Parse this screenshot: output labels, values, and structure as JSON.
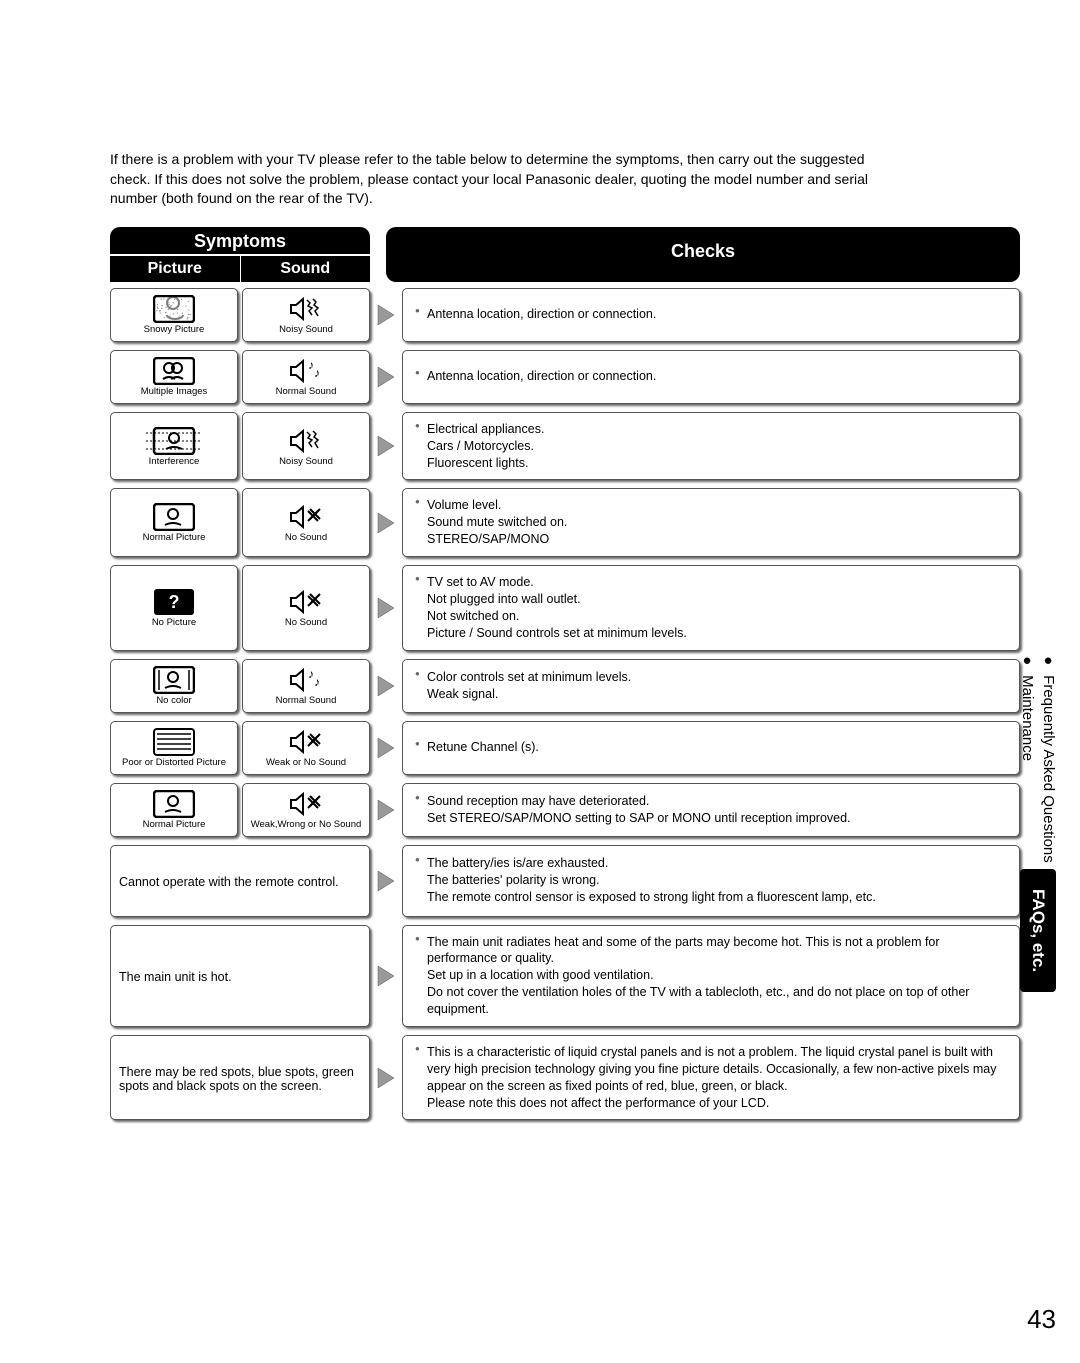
{
  "intro": "If there is a problem with your TV please refer to the table below to determine the symptoms, then carry out the suggested check. If this does not solve the problem, please contact your local Panasonic dealer, quoting the model number and serial number (both found on the rear of the TV).",
  "headers": {
    "symptoms": "Symptoms",
    "picture": "Picture",
    "sound": "Sound",
    "checks": "Checks"
  },
  "rows": [
    {
      "picture_label": "Snowy Picture",
      "picture_icon": "snowy",
      "sound_label": "Noisy Sound",
      "sound_icon": "noisy",
      "checks": [
        {
          "bullet": true,
          "text": "Antenna location, direction or connection."
        }
      ]
    },
    {
      "picture_label": "Multiple Images",
      "picture_icon": "multiple",
      "sound_label": "Normal Sound",
      "sound_icon": "normal",
      "checks": [
        {
          "bullet": true,
          "text": "Antenna location, direction or connection."
        }
      ]
    },
    {
      "picture_label": "Interference",
      "picture_icon": "interference",
      "sound_label": "Noisy Sound",
      "sound_icon": "noisy",
      "checks": [
        {
          "bullet": true,
          "text": "Electrical appliances."
        },
        {
          "bullet": false,
          "text": "Cars / Motorcycles."
        },
        {
          "bullet": false,
          "text": "Fluorescent lights."
        }
      ]
    },
    {
      "picture_label": "Normal Picture",
      "picture_icon": "normal",
      "sound_label": "No Sound",
      "sound_icon": "mute",
      "checks": [
        {
          "bullet": true,
          "text": "Volume level."
        },
        {
          "bullet": false,
          "text": "Sound mute switched on."
        },
        {
          "bullet": false,
          "text": "STEREO/SAP/MONO"
        }
      ]
    },
    {
      "picture_label": "No Picture",
      "picture_icon": "nopicture",
      "sound_label": "No Sound",
      "sound_icon": "mute",
      "checks": [
        {
          "bullet": true,
          "text": "TV set to AV mode."
        },
        {
          "bullet": false,
          "text": "Not plugged into wall outlet."
        },
        {
          "bullet": false,
          "text": "Not switched on."
        },
        {
          "bullet": false,
          "text": "Picture / Sound controls set at minimum levels."
        }
      ]
    },
    {
      "picture_label": "No color",
      "picture_icon": "nocolor",
      "sound_label": "Normal Sound",
      "sound_icon": "normal",
      "checks": [
        {
          "bullet": true,
          "text": "Color controls set at minimum levels."
        },
        {
          "bullet": false,
          "text": "Weak signal."
        }
      ]
    },
    {
      "picture_label": "Poor or Distorted Picture",
      "picture_icon": "distorted",
      "sound_label": "Weak or No Sound",
      "sound_icon": "mute",
      "checks": [
        {
          "bullet": true,
          "text": "Retune Channel (s)."
        }
      ]
    },
    {
      "picture_label": "Normal Picture",
      "picture_icon": "normal",
      "sound_label": "Weak,Wrong or No Sound",
      "sound_icon": "mute",
      "checks": [
        {
          "bullet": true,
          "text": "Sound reception may have deteriorated."
        },
        {
          "bullet": false,
          "text": "Set STEREO/SAP/MONO setting to SAP or MONO until reception improved."
        }
      ]
    }
  ],
  "text_rows": [
    {
      "symptom": "Cannot operate with the remote control.",
      "checks": [
        {
          "bullet": true,
          "text": "The battery/ies is/are exhausted."
        },
        {
          "bullet": false,
          "text": "The batteries' polarity is wrong."
        },
        {
          "bullet": false,
          "text": "The remote control sensor is exposed to strong light from a fluorescent lamp, etc."
        }
      ]
    },
    {
      "symptom": "The main unit is hot.",
      "checks": [
        {
          "bullet": true,
          "text": "The main unit radiates heat and some of the parts may become hot. This is not a problem for performance or quality."
        },
        {
          "bullet": false,
          "text": "Set up in a location with good ventilation."
        },
        {
          "bullet": false,
          "text": "Do not cover the ventilation holes of the TV with a tablecloth, etc., and do not place on top of other equipment."
        }
      ]
    },
    {
      "symptom": "There may be red spots, blue spots, green spots and black spots on the screen.",
      "checks": [
        {
          "bullet": true,
          "text": "This is a characteristic of liquid crystal panels and is not a problem. The liquid crystal panel is built with very high precision technology giving you fine picture details. Occasionally, a few non-active pixels may appear on the screen as fixed points of red, blue, green, or black."
        },
        {
          "bullet": false,
          "text": "Please note this does not affect the performance of your LCD."
        }
      ]
    }
  ],
  "side": {
    "faq": "Frequently Asked Questions",
    "maint": "Maintenance",
    "tab": "FAQs, etc."
  },
  "page_number": "43"
}
